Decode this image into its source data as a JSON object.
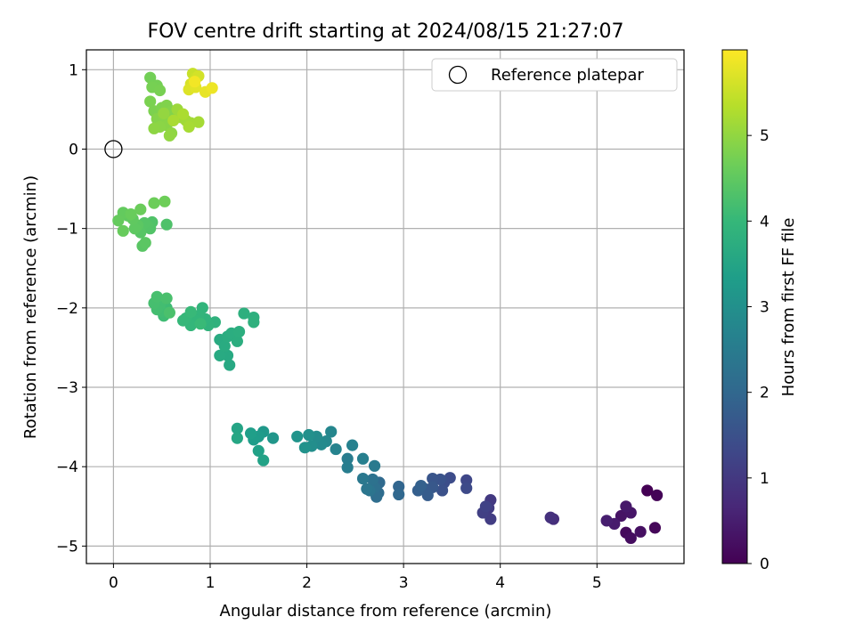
{
  "chart_data": {
    "type": "scatter",
    "title": "FOV centre drift starting at 2024/08/15 21:27:07",
    "xlabel": "Angular distance from reference (arcmin)",
    "ylabel": "Rotation from reference (arcmin)",
    "xlim": [
      -0.28,
      5.9
    ],
    "ylim": [
      -5.22,
      1.25
    ],
    "xticks": [
      0,
      1,
      2,
      3,
      4,
      5
    ],
    "yticks": [
      -5,
      -4,
      -3,
      -2,
      -1,
      0,
      1
    ],
    "grid": true,
    "legend": {
      "placement": "upper-right",
      "entries": [
        {
          "label": "Reference platepar",
          "marker": "open-circle"
        }
      ]
    },
    "reference_point": {
      "x": 0,
      "y": 0
    },
    "colorbar": {
      "label": "Hours from first FF file",
      "colormap": "viridis",
      "range": [
        0,
        6
      ],
      "ticks": [
        0,
        1,
        2,
        3,
        4,
        5
      ]
    },
    "colors": {
      "viridis_stops": [
        "#440154",
        "#482878",
        "#3e4989",
        "#31688e",
        "#26828e",
        "#1f9e89",
        "#35b779",
        "#6ece58",
        "#b5de2b",
        "#fde725"
      ],
      "grid": "#b0b0b0",
      "reference_marker": "#000000"
    },
    "points": [
      [
        5.52,
        -4.3,
        0.0
      ],
      [
        5.62,
        -4.36,
        0.05
      ],
      [
        5.6,
        -4.77,
        0.1
      ],
      [
        5.3,
        -4.83,
        0.15
      ],
      [
        5.35,
        -4.9,
        0.2
      ],
      [
        5.45,
        -4.82,
        0.25
      ],
      [
        5.25,
        -4.62,
        0.3
      ],
      [
        5.35,
        -4.58,
        0.35
      ],
      [
        5.3,
        -4.5,
        0.4
      ],
      [
        5.18,
        -4.72,
        0.45
      ],
      [
        5.1,
        -4.68,
        0.5
      ],
      [
        4.55,
        -4.66,
        0.8
      ],
      [
        4.52,
        -4.64,
        0.85
      ],
      [
        3.9,
        -4.42,
        1.0
      ],
      [
        3.88,
        -4.52,
        1.05
      ],
      [
        3.9,
        -4.66,
        1.1
      ],
      [
        3.82,
        -4.58,
        1.15
      ],
      [
        3.85,
        -4.5,
        1.2
      ],
      [
        3.65,
        -4.17,
        1.3
      ],
      [
        3.65,
        -4.27,
        1.35
      ],
      [
        3.48,
        -4.14,
        1.4
      ],
      [
        3.42,
        -4.2,
        1.45
      ],
      [
        3.4,
        -4.3,
        1.5
      ],
      [
        3.38,
        -4.16,
        1.55
      ],
      [
        3.3,
        -4.15,
        1.6
      ],
      [
        3.3,
        -4.26,
        1.65
      ],
      [
        3.22,
        -4.28,
        1.7
      ],
      [
        3.25,
        -4.36,
        1.75
      ],
      [
        3.15,
        -4.3,
        1.8
      ],
      [
        3.18,
        -4.24,
        1.85
      ],
      [
        2.95,
        -4.25,
        1.95
      ],
      [
        2.95,
        -4.35,
        2.0
      ],
      [
        2.75,
        -4.2,
        2.05
      ],
      [
        2.74,
        -4.33,
        2.1
      ],
      [
        2.72,
        -4.38,
        2.15
      ],
      [
        2.7,
        -4.26,
        2.2
      ],
      [
        2.68,
        -4.16,
        2.25
      ],
      [
        2.65,
        -4.3,
        2.3
      ],
      [
        2.62,
        -4.28,
        2.35
      ],
      [
        2.58,
        -4.15,
        2.4
      ],
      [
        2.7,
        -3.99,
        2.45
      ],
      [
        2.42,
        -3.9,
        2.5
      ],
      [
        2.42,
        -4.01,
        2.55
      ],
      [
        2.58,
        -3.9,
        2.6
      ],
      [
        2.47,
        -3.73,
        2.65
      ],
      [
        2.3,
        -3.78,
        2.7
      ],
      [
        2.25,
        -3.56,
        2.75
      ],
      [
        2.2,
        -3.68,
        2.8
      ],
      [
        2.15,
        -3.72,
        2.85
      ],
      [
        2.1,
        -3.62,
        2.9
      ],
      [
        2.05,
        -3.74,
        2.95
      ],
      [
        2.02,
        -3.6,
        3.0
      ],
      [
        1.98,
        -3.76,
        3.05
      ],
      [
        1.9,
        -3.62,
        3.1
      ],
      [
        1.65,
        -3.64,
        3.15
      ],
      [
        1.55,
        -3.56,
        3.2
      ],
      [
        1.5,
        -3.62,
        3.25
      ],
      [
        1.45,
        -3.66,
        3.3
      ],
      [
        1.42,
        -3.58,
        3.35
      ],
      [
        1.5,
        -3.8,
        3.4
      ],
      [
        1.55,
        -3.92,
        3.45
      ],
      [
        1.28,
        -3.52,
        3.5
      ],
      [
        1.28,
        -3.64,
        3.55
      ],
      [
        1.2,
        -2.72,
        3.6
      ],
      [
        1.18,
        -2.6,
        3.62
      ],
      [
        1.1,
        -2.6,
        3.64
      ],
      [
        1.1,
        -2.4,
        3.66
      ],
      [
        1.15,
        -2.48,
        3.68
      ],
      [
        1.18,
        -2.36,
        3.7
      ],
      [
        1.22,
        -2.32,
        3.72
      ],
      [
        1.28,
        -2.42,
        3.74
      ],
      [
        1.3,
        -2.3,
        3.76
      ],
      [
        1.35,
        -2.07,
        3.78
      ],
      [
        1.45,
        -2.12,
        3.8
      ],
      [
        1.45,
        -2.18,
        3.82
      ],
      [
        1.05,
        -2.18,
        3.85
      ],
      [
        0.98,
        -2.22,
        3.87
      ],
      [
        0.95,
        -2.14,
        3.89
      ],
      [
        0.92,
        -2.0,
        3.91
      ],
      [
        0.88,
        -2.1,
        3.93
      ],
      [
        0.85,
        -2.16,
        3.95
      ],
      [
        0.8,
        -2.22,
        3.97
      ],
      [
        0.75,
        -2.13,
        3.99
      ],
      [
        0.72,
        -2.16,
        4.01
      ],
      [
        0.8,
        -2.05,
        4.03
      ],
      [
        0.9,
        -2.2,
        4.05
      ],
      [
        0.55,
        -2.0,
        4.1
      ],
      [
        0.52,
        -2.1,
        4.12
      ],
      [
        0.5,
        -2.04,
        4.14
      ],
      [
        0.48,
        -1.96,
        4.16
      ],
      [
        0.45,
        -2.02,
        4.18
      ],
      [
        0.42,
        -1.94,
        4.2
      ],
      [
        0.45,
        -1.86,
        4.22
      ],
      [
        0.55,
        -1.88,
        4.24
      ],
      [
        0.58,
        -2.06,
        4.26
      ],
      [
        0.55,
        -0.95,
        4.3
      ],
      [
        0.4,
        -0.92,
        4.32
      ],
      [
        0.38,
        -1.0,
        4.34
      ],
      [
        0.35,
        -0.96,
        4.36
      ],
      [
        0.32,
        -0.93,
        4.38
      ],
      [
        0.28,
        -1.05,
        4.4
      ],
      [
        0.3,
        -1.22,
        4.42
      ],
      [
        0.33,
        -1.18,
        4.44
      ],
      [
        0.25,
        -0.96,
        4.46
      ],
      [
        0.22,
        -1.0,
        4.48
      ],
      [
        0.2,
        -0.88,
        4.5
      ],
      [
        0.15,
        -0.84,
        4.52
      ],
      [
        0.1,
        -0.8,
        4.54
      ],
      [
        0.05,
        -0.9,
        4.56
      ],
      [
        0.1,
        -1.03,
        4.58
      ],
      [
        0.18,
        -0.82,
        4.6
      ],
      [
        0.28,
        -0.76,
        4.62
      ],
      [
        0.42,
        -0.68,
        4.64
      ],
      [
        0.53,
        -0.66,
        4.66
      ],
      [
        0.38,
        0.9,
        4.7
      ],
      [
        0.45,
        0.8,
        4.72
      ],
      [
        0.4,
        0.78,
        4.74
      ],
      [
        0.48,
        0.74,
        4.76
      ],
      [
        0.38,
        0.6,
        4.78
      ],
      [
        0.42,
        0.48,
        4.8
      ],
      [
        0.5,
        0.52,
        4.82
      ],
      [
        0.55,
        0.55,
        4.84
      ],
      [
        0.6,
        0.48,
        4.86
      ],
      [
        0.45,
        0.38,
        4.88
      ],
      [
        0.52,
        0.4,
        4.9
      ],
      [
        0.55,
        0.3,
        4.92
      ],
      [
        0.48,
        0.28,
        4.94
      ],
      [
        0.42,
        0.26,
        4.96
      ],
      [
        0.6,
        0.2,
        4.98
      ],
      [
        0.58,
        0.17,
        5.0
      ],
      [
        0.52,
        0.45,
        5.02
      ],
      [
        0.66,
        0.5,
        5.1
      ],
      [
        0.7,
        0.4,
        5.12
      ],
      [
        0.75,
        0.36,
        5.14
      ],
      [
        0.8,
        0.33,
        5.16
      ],
      [
        0.88,
        0.34,
        5.18
      ],
      [
        0.78,
        0.28,
        5.2
      ],
      [
        0.62,
        0.36,
        5.22
      ],
      [
        0.72,
        0.44,
        5.24
      ],
      [
        0.82,
        0.95,
        5.5
      ],
      [
        0.85,
        0.9,
        5.55
      ],
      [
        0.88,
        0.92,
        5.6
      ],
      [
        0.8,
        0.82,
        5.65
      ],
      [
        0.78,
        0.75,
        5.7
      ],
      [
        0.85,
        0.78,
        5.75
      ],
      [
        0.95,
        0.72,
        5.8
      ],
      [
        1.02,
        0.77,
        5.85
      ],
      [
        0.84,
        0.85,
        5.9
      ]
    ]
  }
}
